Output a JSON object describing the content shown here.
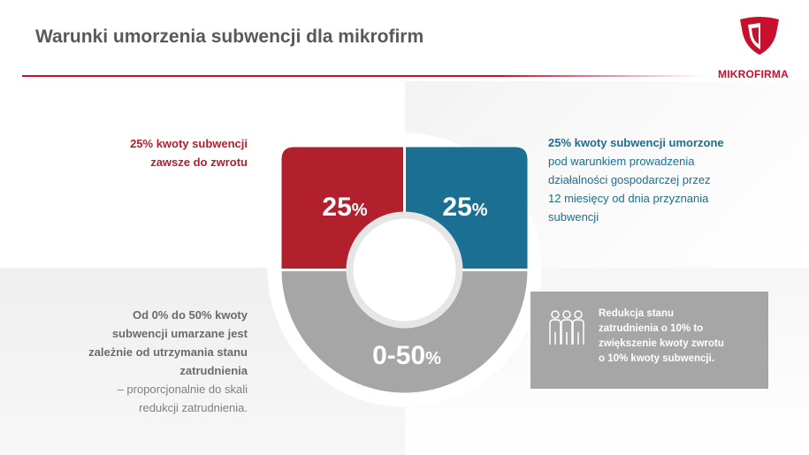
{
  "header": {
    "title": "Warunki umorzenia subwencji dla mikrofirm",
    "logo_text": "MIKROFIRMA"
  },
  "colors": {
    "brand_red": "#c8102e",
    "segment_red": "#b21f2d",
    "segment_blue": "#1a6f93",
    "segment_grey": "#a6a6a6"
  },
  "donut": {
    "segments": [
      {
        "id": "red",
        "big": "25",
        "small": "%"
      },
      {
        "id": "blue",
        "big": "25",
        "small": "%"
      },
      {
        "id": "grey",
        "big": "0-50",
        "small": "%"
      }
    ]
  },
  "top_left": {
    "line1": "25% kwoty subwencji",
    "line2": "zawsze do zwrotu"
  },
  "top_right": {
    "heading": "25% kwoty subwencji umorzone",
    "lines": [
      "pod warunkiem prowadzenia",
      "działalności gospodarczej przez",
      "12 miesięcy od dnia przyznania",
      "subwencji"
    ]
  },
  "bottom_left": {
    "bold_lines": [
      "Od 0% do 50% kwoty",
      "subwencji umarzane jest",
      "zależnie od utrzymania stanu",
      "zatrudnienia"
    ],
    "lines": [
      "– proporcjonalnie do skali",
      "redukcji zatrudnienia."
    ]
  },
  "info_box": {
    "icon": "people-icon",
    "lines": [
      "Redukcja stanu",
      "zatrudnienia  o 10% to",
      "zwiększenie kwoty zwrotu",
      "o 10% kwoty subwencji."
    ]
  }
}
